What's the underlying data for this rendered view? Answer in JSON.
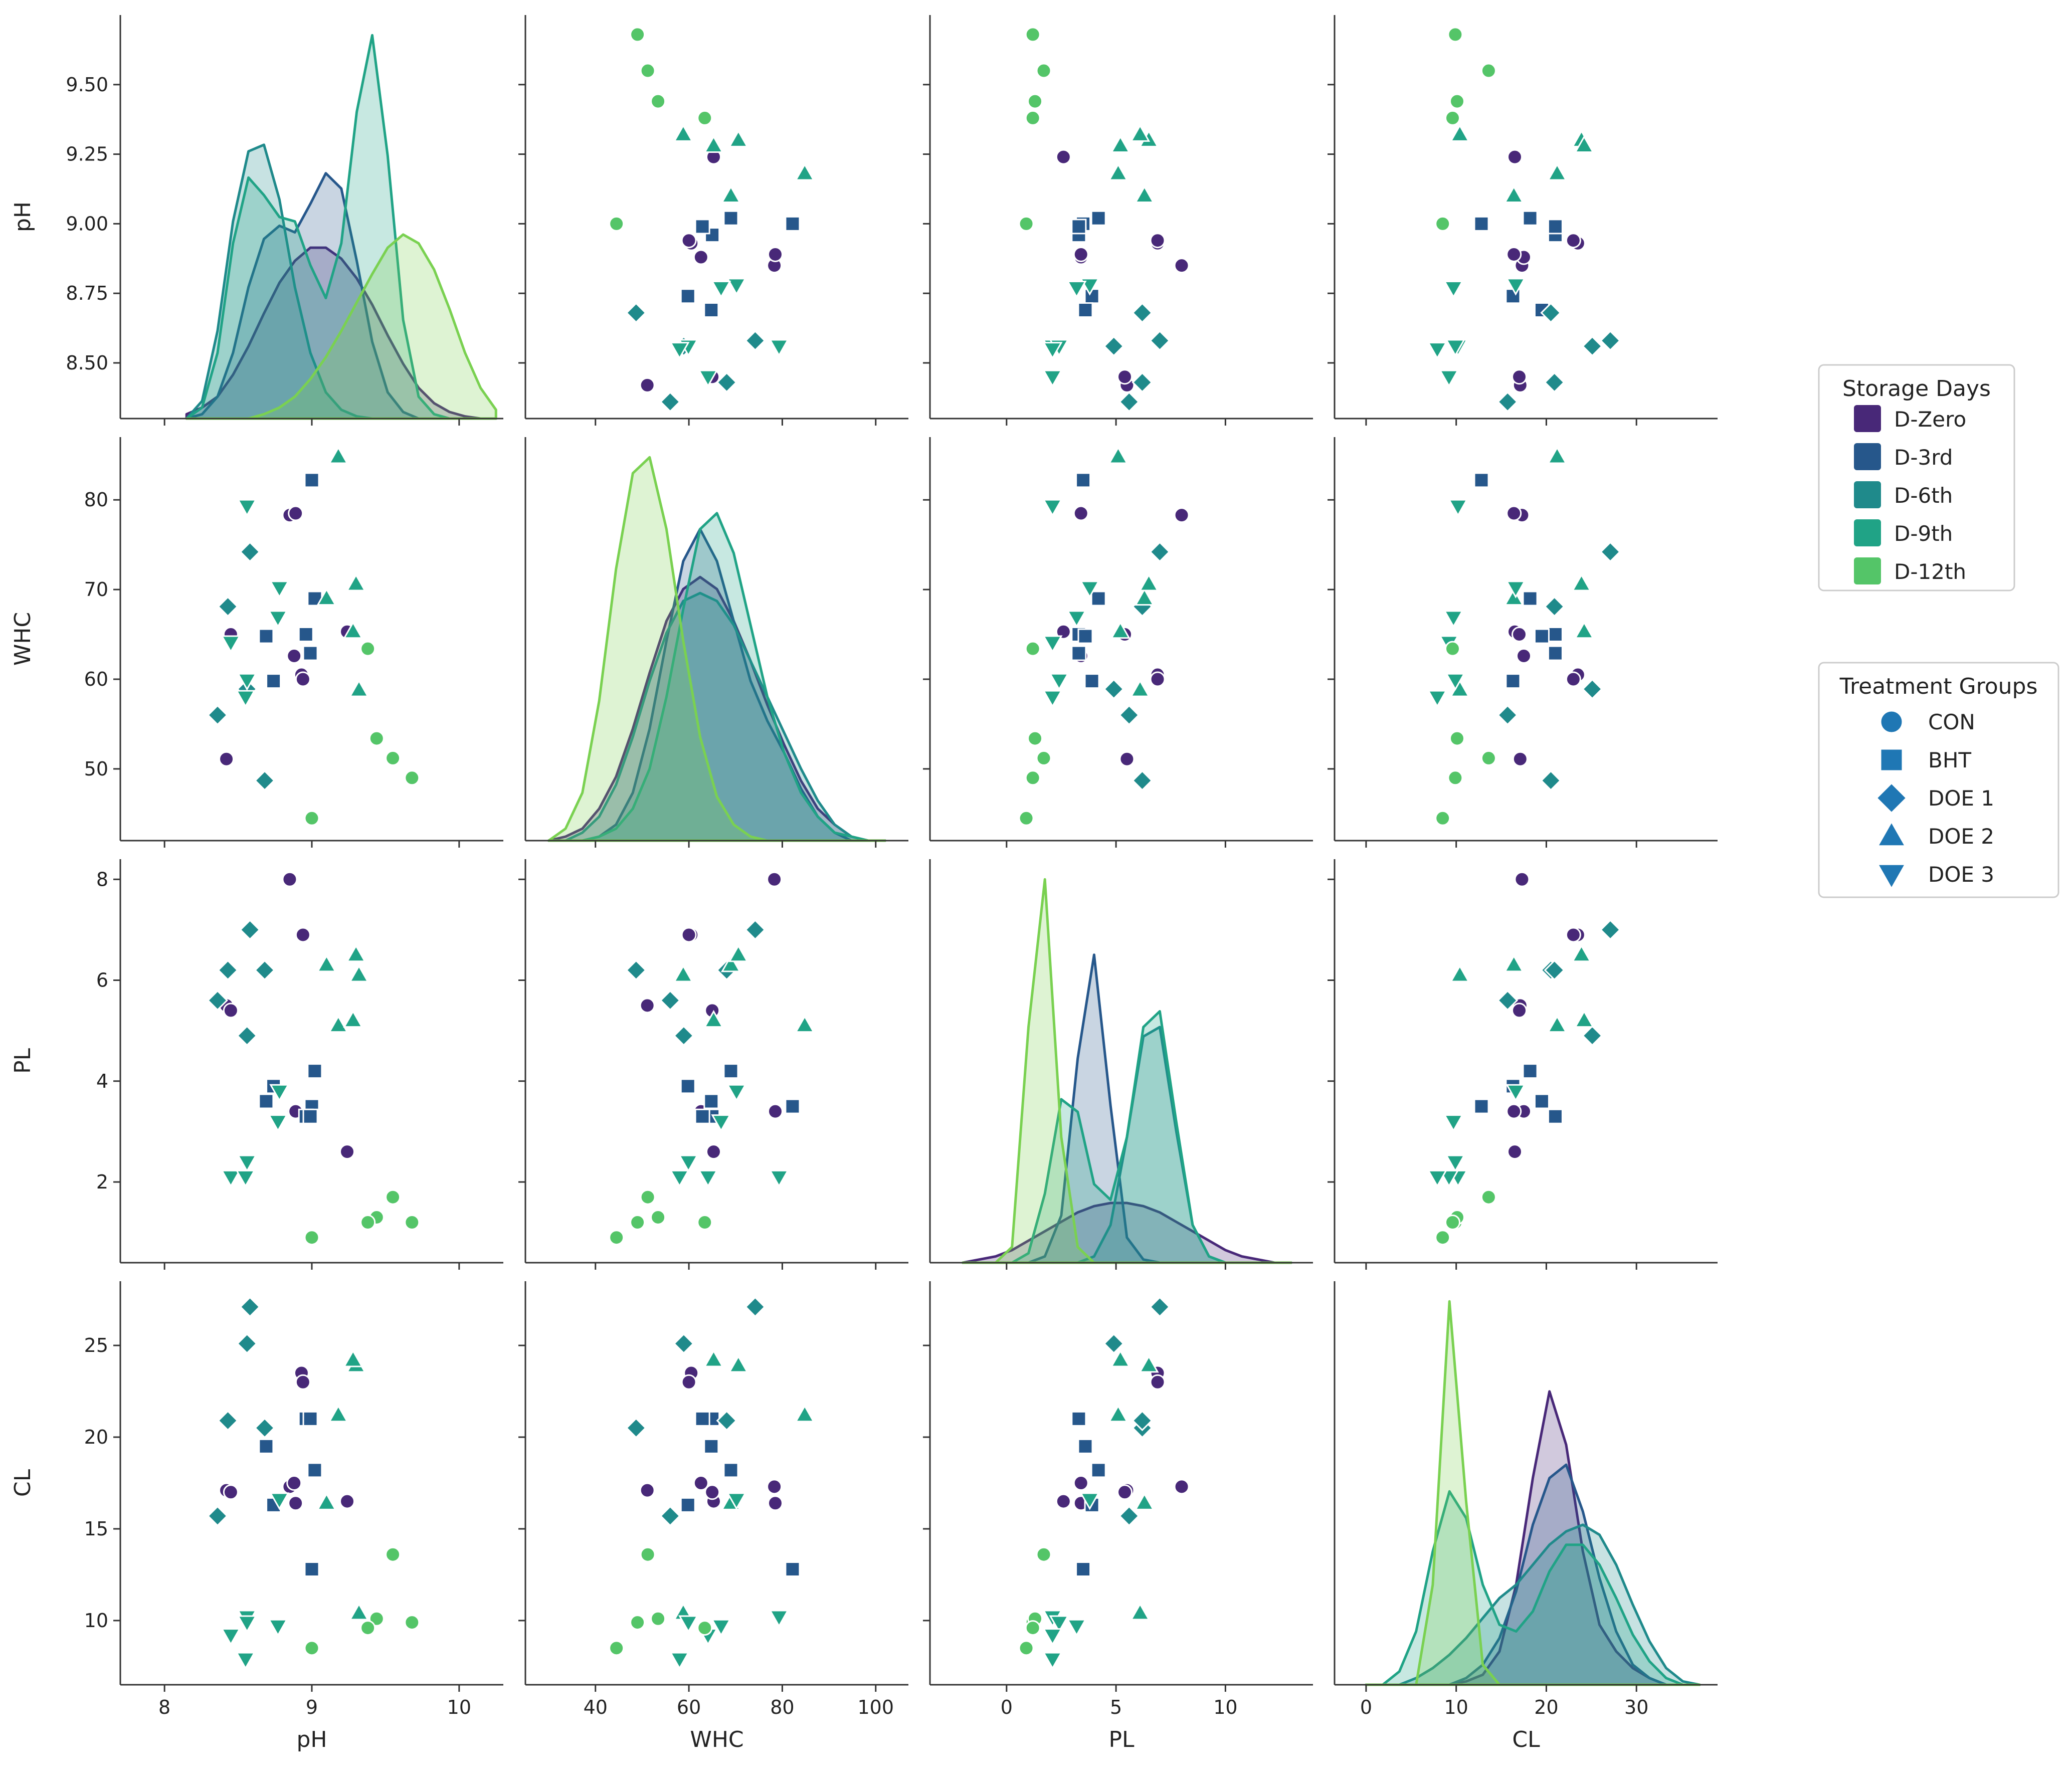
{
  "chart_data": {
    "type": "scatter",
    "title": "",
    "variables": [
      "pH",
      "WHC",
      "PL",
      "CL"
    ],
    "axes": {
      "pH": {
        "range": [
          7.7,
          10.3
        ],
        "ticks": [
          8,
          9,
          10
        ],
        "tick_labels": [
          "8",
          "9",
          "10"
        ]
      },
      "WHC": {
        "range": [
          25,
          107
        ],
        "ticks": [
          40,
          60,
          80,
          100
        ],
        "tick_labels": [
          "40",
          "60",
          "80",
          "100"
        ]
      },
      "PL": {
        "range": [
          -3.5,
          14
        ],
        "ticks": [
          0,
          5,
          10
        ],
        "tick_labels": [
          "0",
          "5",
          "10"
        ]
      },
      "CL": {
        "range": [
          -3.5,
          39
        ],
        "ticks": [
          0,
          10,
          20,
          30
        ],
        "tick_labels": [
          "0",
          "10",
          "20",
          "30"
        ]
      }
    },
    "y_axes": {
      "pH": {
        "range": [
          8.3,
          9.75
        ],
        "ticks": [
          8.5,
          8.75,
          9.0,
          9.25,
          9.5
        ],
        "tick_labels": [
          "8.50",
          "8.75",
          "9.00",
          "9.25",
          "9.50"
        ]
      },
      "WHC": {
        "range": [
          42,
          87
        ],
        "ticks": [
          50,
          60,
          70,
          80
        ],
        "tick_labels": [
          "50",
          "60",
          "70",
          "80"
        ]
      },
      "PL": {
        "range": [
          0.4,
          8.4
        ],
        "ticks": [
          2,
          4,
          6,
          8
        ],
        "tick_labels": [
          "2",
          "4",
          "6",
          "8"
        ]
      },
      "CL": {
        "range": [
          6.5,
          28.5
        ],
        "ticks": [
          10,
          15,
          20,
          25
        ],
        "tick_labels": [
          "10",
          "15",
          "20",
          "25"
        ]
      }
    },
    "hue_legend": {
      "title": "Storage Days",
      "entries": [
        "D-Zero",
        "D-3rd",
        "D-6th",
        "D-9th",
        "D-12th"
      ],
      "colors": [
        "#482878",
        "#26578b",
        "#1f8a8b",
        "#20a386",
        "#54c568"
      ]
    },
    "kde_colors": {
      "D-Zero": "#482878",
      "D-3rd": "#26578b",
      "D-6th": "#1f8a8b",
      "D-9th": "#20a386",
      "D-12th": "#7ad151"
    },
    "style_legend": {
      "title": "Treatment Groups",
      "entries": [
        "CON",
        "BHT",
        "DOE 1",
        "DOE 2",
        "DOE 3"
      ],
      "markers": [
        "circle",
        "square",
        "diamond",
        "triangle-up",
        "triangle-down"
      ],
      "color": "#1f77b4"
    },
    "points": [
      {
        "group": "D-Zero",
        "treatment": "CON",
        "pH": 8.85,
        "WHC": 78.3,
        "PL": 8.0,
        "CL": 17.3
      },
      {
        "group": "D-Zero",
        "treatment": "CON",
        "pH": 8.93,
        "WHC": 60.5,
        "PL": 6.9,
        "CL": 23.5
      },
      {
        "group": "D-Zero",
        "treatment": "CON",
        "pH": 8.42,
        "WHC": 51.1,
        "PL": 5.5,
        "CL": 17.1
      },
      {
        "group": "D-Zero",
        "treatment": "CON",
        "pH": 9.24,
        "WHC": 65.3,
        "PL": 2.6,
        "CL": 16.5
      },
      {
        "group": "D-Zero",
        "treatment": "CON",
        "pH": 8.88,
        "WHC": 62.6,
        "PL": 3.4,
        "CL": 17.5
      },
      {
        "group": "D-Zero",
        "treatment": "CON",
        "pH": 8.94,
        "WHC": 60.0,
        "PL": 6.9,
        "CL": 23.0
      },
      {
        "group": "D-Zero",
        "treatment": "CON",
        "pH": 8.45,
        "WHC": 65.0,
        "PL": 5.4,
        "CL": 17.0
      },
      {
        "group": "D-Zero",
        "treatment": "CON",
        "pH": 8.89,
        "WHC": 78.5,
        "PL": 3.4,
        "CL": 16.4
      },
      {
        "group": "D-3rd",
        "treatment": "BHT",
        "pH": 9.0,
        "WHC": 82.2,
        "PL": 3.5,
        "CL": 12.8
      },
      {
        "group": "D-3rd",
        "treatment": "BHT",
        "pH": 9.02,
        "WHC": 69.0,
        "PL": 4.2,
        "CL": 18.2
      },
      {
        "group": "D-3rd",
        "treatment": "BHT",
        "pH": 8.96,
        "WHC": 65.0,
        "PL": 3.3,
        "CL": 21.0
      },
      {
        "group": "D-3rd",
        "treatment": "BHT",
        "pH": 8.74,
        "WHC": 59.8,
        "PL": 3.9,
        "CL": 16.3
      },
      {
        "group": "D-3rd",
        "treatment": "BHT",
        "pH": 8.69,
        "WHC": 64.8,
        "PL": 3.6,
        "CL": 19.5
      },
      {
        "group": "D-3rd",
        "treatment": "BHT",
        "pH": 8.99,
        "WHC": 62.9,
        "PL": 3.3,
        "CL": 21.0
      },
      {
        "group": "D-6th",
        "treatment": "DOE 1",
        "pH": 8.36,
        "WHC": 56.0,
        "PL": 5.6,
        "CL": 15.7
      },
      {
        "group": "D-6th",
        "treatment": "DOE 1",
        "pH": 8.58,
        "WHC": 74.2,
        "PL": 7.0,
        "CL": 27.1
      },
      {
        "group": "D-6th",
        "treatment": "DOE 1",
        "pH": 8.68,
        "WHC": 48.7,
        "PL": 6.2,
        "CL": 20.5
      },
      {
        "group": "D-6th",
        "treatment": "DOE 1",
        "pH": 8.43,
        "WHC": 68.1,
        "PL": 6.2,
        "CL": 20.9
      },
      {
        "group": "D-6th",
        "treatment": "DOE 1",
        "pH": 8.56,
        "WHC": 58.9,
        "PL": 4.9,
        "CL": 25.1
      },
      {
        "group": "D-9th",
        "treatment": "DOE 2",
        "pH": 9.1,
        "WHC": 69.0,
        "PL": 6.3,
        "CL": 16.4
      },
      {
        "group": "D-9th",
        "treatment": "DOE 2",
        "pH": 9.18,
        "WHC": 84.8,
        "PL": 5.1,
        "CL": 21.2
      },
      {
        "group": "D-9th",
        "treatment": "DOE 2",
        "pH": 9.3,
        "WHC": 70.6,
        "PL": 6.5,
        "CL": 23.9
      },
      {
        "group": "D-9th",
        "treatment": "DOE 2",
        "pH": 9.28,
        "WHC": 65.3,
        "PL": 5.2,
        "CL": 24.2
      },
      {
        "group": "D-9th",
        "treatment": "DOE 2",
        "pH": 9.32,
        "WHC": 58.8,
        "PL": 6.1,
        "CL": 10.4
      },
      {
        "group": "D-9th",
        "treatment": "DOE 3",
        "pH": 8.78,
        "WHC": 70.2,
        "PL": 3.8,
        "CL": 16.6
      },
      {
        "group": "D-9th",
        "treatment": "DOE 3",
        "pH": 8.56,
        "WHC": 79.3,
        "PL": 2.1,
        "CL": 10.2
      },
      {
        "group": "D-9th",
        "treatment": "DOE 3",
        "pH": 8.56,
        "WHC": 59.9,
        "PL": 2.4,
        "CL": 9.9
      },
      {
        "group": "D-9th",
        "treatment": "DOE 3",
        "pH": 8.77,
        "WHC": 66.9,
        "PL": 3.2,
        "CL": 9.7
      },
      {
        "group": "D-9th",
        "treatment": "DOE 3",
        "pH": 8.45,
        "WHC": 64.1,
        "PL": 2.1,
        "CL": 9.2
      },
      {
        "group": "D-9th",
        "treatment": "DOE 3",
        "pH": 8.55,
        "WHC": 58.0,
        "PL": 2.1,
        "CL": 7.9
      },
      {
        "group": "D-12th",
        "treatment": "CON",
        "pH": 9.68,
        "WHC": 49.0,
        "PL": 1.2,
        "CL": 9.9
      },
      {
        "group": "D-12th",
        "treatment": "CON",
        "pH": 9.55,
        "WHC": 51.2,
        "PL": 1.7,
        "CL": 13.6
      },
      {
        "group": "D-12th",
        "treatment": "CON",
        "pH": 9.44,
        "WHC": 53.4,
        "PL": 1.3,
        "CL": 10.1
      },
      {
        "group": "D-12th",
        "treatment": "CON",
        "pH": 9.38,
        "WHC": 63.4,
        "PL": 1.2,
        "CL": 9.6
      },
      {
        "group": "D-12th",
        "treatment": "CON",
        "pH": 9.0,
        "WHC": 44.5,
        "PL": 0.9,
        "CL": 8.5
      }
    ],
    "kde_curves": {
      "pH": {
        "x_range": [
          8.15,
          10.25
        ],
        "groups": {
          "D-Zero": [
            0.02,
            0.05,
            0.1,
            0.2,
            0.33,
            0.48,
            0.62,
            0.72,
            0.78,
            0.78,
            0.73,
            0.64,
            0.52,
            0.38,
            0.25,
            0.14,
            0.07,
            0.03,
            0.01,
            0.0,
            0.0
          ],
          "D-3rd": [
            0.0,
            0.02,
            0.1,
            0.3,
            0.6,
            0.82,
            0.88,
            0.85,
            0.98,
            1.12,
            1.05,
            0.72,
            0.35,
            0.12,
            0.03,
            0.0,
            0.0,
            0.0,
            0.0,
            0.0,
            0.0
          ],
          "D-6th": [
            0.0,
            0.08,
            0.4,
            0.9,
            1.22,
            1.25,
            1.0,
            0.6,
            0.3,
            0.12,
            0.04,
            0.01,
            0.0,
            0.0,
            0.0,
            0.0,
            0.0,
            0.0,
            0.0,
            0.0,
            0.0
          ],
          "D-9th": [
            0.0,
            0.05,
            0.3,
            0.8,
            1.1,
            1.02,
            0.92,
            0.9,
            0.7,
            0.55,
            0.8,
            1.4,
            1.75,
            1.2,
            0.45,
            0.1,
            0.02,
            0.0,
            0.0,
            0.0,
            0.0
          ],
          "D-12th": [
            0.0,
            0.0,
            0.0,
            0.0,
            0.0,
            0.02,
            0.05,
            0.1,
            0.18,
            0.28,
            0.4,
            0.53,
            0.66,
            0.78,
            0.84,
            0.8,
            0.68,
            0.5,
            0.3,
            0.14,
            0.04
          ]
        }
      },
      "WHC": {
        "x_range": [
          30,
          102
        ],
        "groups": {
          "D-Zero": [
            0.0,
            0.01,
            0.03,
            0.08,
            0.16,
            0.28,
            0.42,
            0.55,
            0.63,
            0.66,
            0.63,
            0.55,
            0.45,
            0.34,
            0.24,
            0.15,
            0.08,
            0.04,
            0.01,
            0.0,
            0.0
          ],
          "D-3rd": [
            0.0,
            0.0,
            0.0,
            0.01,
            0.04,
            0.12,
            0.28,
            0.5,
            0.7,
            0.78,
            0.7,
            0.55,
            0.4,
            0.3,
            0.22,
            0.13,
            0.06,
            0.02,
            0.0,
            0.0,
            0.0
          ],
          "D-6th": [
            0.0,
            0.0,
            0.02,
            0.06,
            0.14,
            0.26,
            0.4,
            0.52,
            0.6,
            0.62,
            0.6,
            0.54,
            0.45,
            0.36,
            0.27,
            0.18,
            0.1,
            0.04,
            0.01,
            0.0,
            0.0
          ],
          "D-9th": [
            0.0,
            0.0,
            0.0,
            0.01,
            0.03,
            0.08,
            0.18,
            0.36,
            0.58,
            0.78,
            0.82,
            0.72,
            0.54,
            0.36,
            0.22,
            0.12,
            0.06,
            0.02,
            0.01,
            0.0,
            0.0
          ],
          "D-12th": [
            0.0,
            0.03,
            0.12,
            0.35,
            0.68,
            0.92,
            0.96,
            0.78,
            0.5,
            0.26,
            0.11,
            0.04,
            0.01,
            0.0,
            0.0,
            0.0,
            0.0,
            0.0,
            0.0,
            0.0,
            0.0
          ]
        }
      },
      "PL": {
        "x_range": [
          -2,
          13
        ],
        "groups": {
          "D-Zero": [
            0.0,
            0.01,
            0.02,
            0.04,
            0.07,
            0.1,
            0.13,
            0.16,
            0.18,
            0.19,
            0.19,
            0.18,
            0.16,
            0.13,
            0.1,
            0.07,
            0.04,
            0.02,
            0.01,
            0.0,
            0.0
          ],
          "D-3rd": [
            0.0,
            0.0,
            0.0,
            0.0,
            0.0,
            0.02,
            0.15,
            0.65,
            0.98,
            0.5,
            0.08,
            0.01,
            0.0,
            0.0,
            0.0,
            0.0,
            0.0,
            0.0,
            0.0,
            0.0,
            0.0
          ],
          "D-6th": [
            0.0,
            0.0,
            0.0,
            0.0,
            0.0,
            0.0,
            0.0,
            0.0,
            0.02,
            0.12,
            0.4,
            0.72,
            0.75,
            0.42,
            0.12,
            0.02,
            0.0,
            0.0,
            0.0,
            0.0,
            0.0
          ],
          "D-9th": [
            0.0,
            0.0,
            0.0,
            0.0,
            0.03,
            0.22,
            0.52,
            0.48,
            0.25,
            0.2,
            0.4,
            0.75,
            0.8,
            0.45,
            0.12,
            0.02,
            0.0,
            0.0,
            0.0,
            0.0,
            0.0
          ],
          "D-12th": [
            0.0,
            0.0,
            0.0,
            0.05,
            0.75,
            1.22,
            0.4,
            0.05,
            0.0,
            0.0,
            0.0,
            0.0,
            0.0,
            0.0,
            0.0,
            0.0,
            0.0,
            0.0,
            0.0,
            0.0,
            0.0
          ]
        }
      },
      "CL": {
        "x_range": [
          0,
          37
        ],
        "groups": {
          "D-Zero": [
            0.0,
            0.0,
            0.0,
            0.0,
            0.0,
            0.0,
            0.01,
            0.03,
            0.1,
            0.3,
            0.62,
            0.88,
            0.72,
            0.4,
            0.18,
            0.1,
            0.05,
            0.02,
            0.0,
            0.0,
            0.0
          ],
          "D-3rd": [
            0.0,
            0.0,
            0.0,
            0.0,
            0.0,
            0.0,
            0.02,
            0.06,
            0.14,
            0.28,
            0.48,
            0.62,
            0.66,
            0.52,
            0.32,
            0.16,
            0.06,
            0.02,
            0.0,
            0.0,
            0.0
          ],
          "D-6th": [
            0.0,
            0.0,
            0.0,
            0.02,
            0.05,
            0.09,
            0.14,
            0.2,
            0.26,
            0.3,
            0.36,
            0.42,
            0.46,
            0.48,
            0.45,
            0.36,
            0.24,
            0.13,
            0.05,
            0.01,
            0.0
          ],
          "D-9th": [
            0.0,
            0.0,
            0.04,
            0.16,
            0.4,
            0.58,
            0.5,
            0.3,
            0.18,
            0.16,
            0.22,
            0.34,
            0.42,
            0.42,
            0.36,
            0.26,
            0.15,
            0.07,
            0.02,
            0.0,
            0.0
          ],
          "D-12th": [
            0.0,
            0.0,
            0.0,
            0.0,
            0.3,
            1.15,
            0.55,
            0.06,
            0.0,
            0.0,
            0.0,
            0.0,
            0.0,
            0.0,
            0.0,
            0.0,
            0.0,
            0.0,
            0.0,
            0.0,
            0.0
          ]
        }
      }
    }
  }
}
